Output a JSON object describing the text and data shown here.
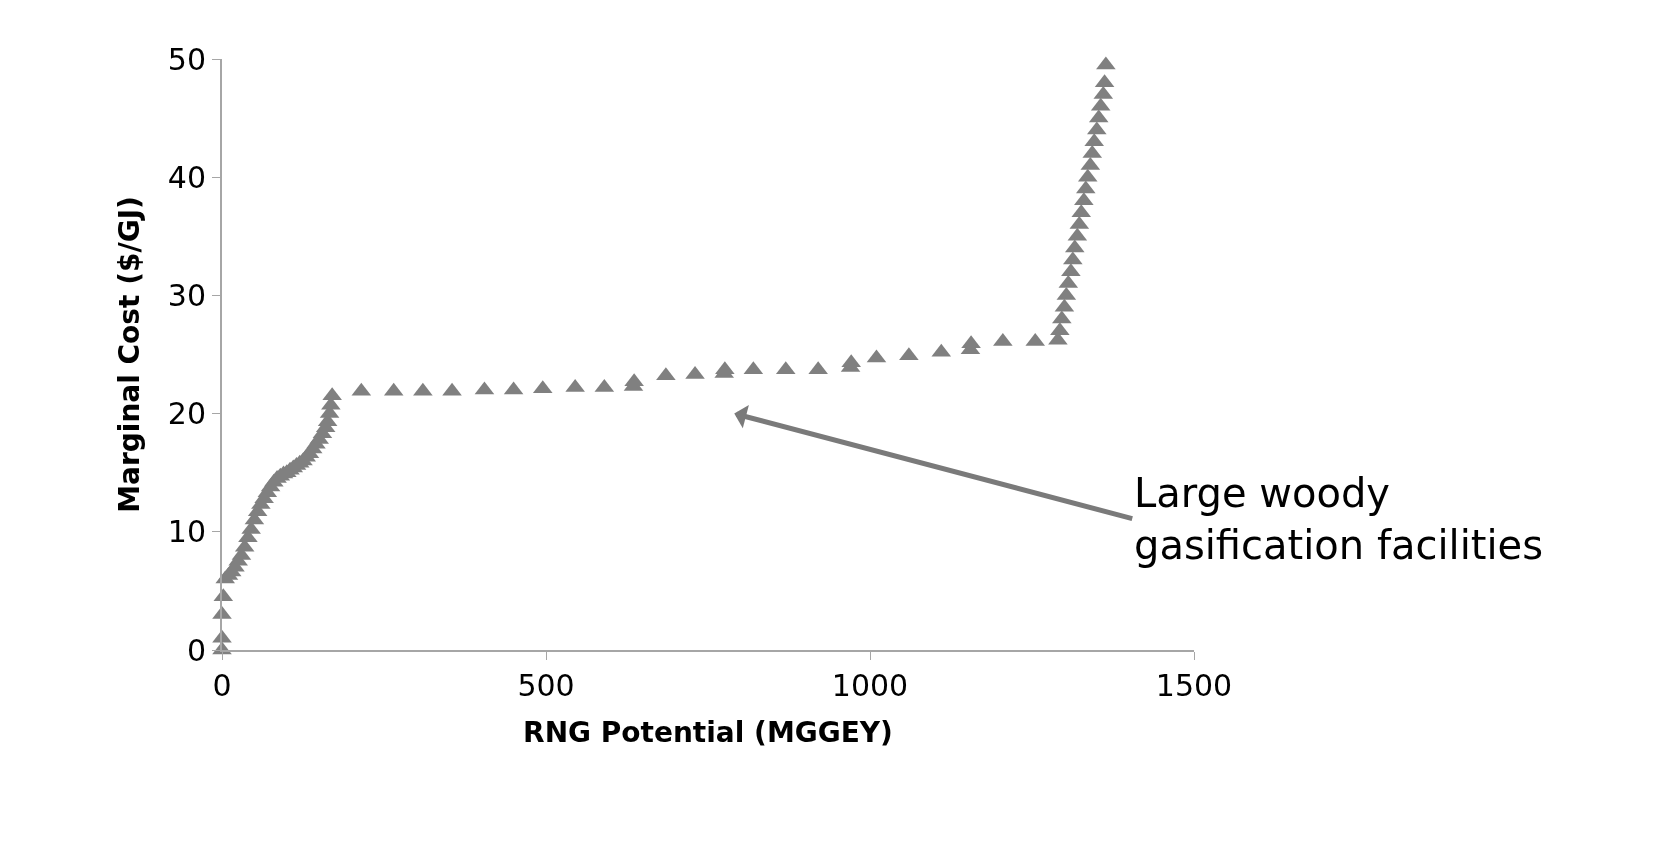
{
  "chart_data": {
    "type": "scatter",
    "xlabel": "RNG Potential (MGGEY)",
    "ylabel": "Marginal Cost ($/GJ)",
    "x": [
      0,
      0,
      0,
      2,
      5,
      10,
      15,
      20,
      25,
      30,
      35,
      40,
      45,
      50,
      55,
      60,
      65,
      70,
      75,
      80,
      85,
      90,
      95,
      100,
      105,
      110,
      115,
      120,
      125,
      130,
      135,
      140,
      145,
      150,
      155,
      160,
      163,
      166,
      168,
      170,
      215,
      265,
      310,
      355,
      405,
      450,
      495,
      545,
      590,
      635,
      636,
      685,
      730,
      775,
      776,
      820,
      870,
      920,
      970,
      971,
      1010,
      1060,
      1110,
      1155,
      1156,
      1205,
      1255,
      1290,
      1293,
      1296,
      1300,
      1303,
      1306,
      1310,
      1313,
      1316,
      1320,
      1323,
      1326,
      1330,
      1333,
      1336,
      1340,
      1343,
      1346,
      1350,
      1353,
      1356,
      1360,
      1362,
      1364
    ],
    "values": [
      0,
      1,
      3,
      4.5,
      6,
      6.3,
      6.6,
      7,
      7.5,
      8,
      8.7,
      9.5,
      10.2,
      11,
      11.7,
      12.3,
      12.8,
      13.3,
      13.8,
      14.2,
      14.5,
      14.7,
      14.9,
      15,
      15.2,
      15.4,
      15.6,
      15.8,
      16,
      16.3,
      16.6,
      17,
      17.4,
      17.8,
      18.3,
      18.8,
      19.3,
      20,
      20.7,
      21.5,
      21.9,
      21.9,
      21.9,
      21.9,
      22,
      22,
      22.1,
      22.2,
      22.2,
      22.3,
      22.7,
      23.2,
      23.3,
      23.4,
      23.7,
      23.7,
      23.7,
      23.7,
      23.9,
      24.3,
      24.7,
      24.9,
      25.2,
      25.4,
      25.9,
      26.1,
      26.1,
      26.2,
      27,
      28,
      29,
      30,
      31,
      32,
      33,
      34,
      35,
      36,
      37,
      38,
      39,
      40,
      41,
      42,
      43,
      44,
      45,
      46,
      47,
      48,
      49.5
    ],
    "color": "#808080",
    "marker": "triangle",
    "xlim": [
      0,
      1500
    ],
    "xticks": [
      0,
      500,
      1000,
      1500
    ],
    "ylim": [
      0,
      50
    ],
    "yticks": [
      0,
      10,
      20,
      30,
      40,
      50
    ],
    "annotations": [
      "Large woody\ngasification facilities"
    ]
  }
}
